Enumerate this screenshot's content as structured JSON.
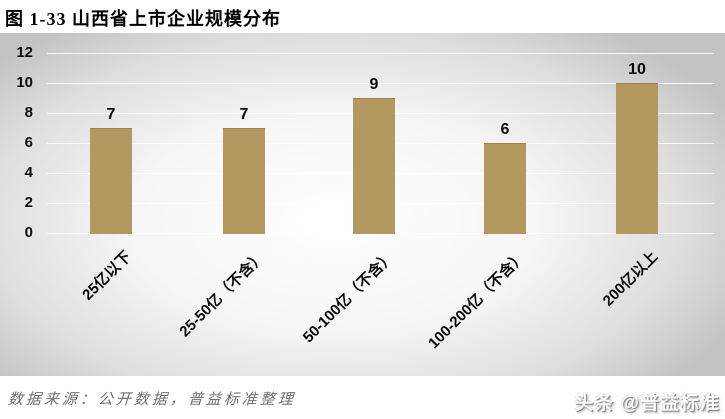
{
  "figure_title": "图 1-33  山西省上市企业规模分布",
  "chart_data": {
    "type": "bar",
    "title": "图 1-33 山西省上市企业规模分布",
    "categories": [
      "25亿以下",
      "25-50亿（不含）",
      "50-100亿（不含）",
      "100-200亿（不含）",
      "200亿以上"
    ],
    "values": [
      7,
      7,
      9,
      6,
      10
    ],
    "xlabel": "",
    "ylabel": "",
    "ylim": [
      0,
      12
    ],
    "yticks": [
      0,
      2,
      4,
      6,
      8,
      10,
      12
    ],
    "grid": true,
    "legend": "none",
    "value_labels_shown": true,
    "bar_color": "#B3985F",
    "x_label_rotation_deg": 45
  },
  "footer": {
    "source_note": "数据来源：公开数据，普益标准整理",
    "watermark": "头条 @普益标准"
  }
}
